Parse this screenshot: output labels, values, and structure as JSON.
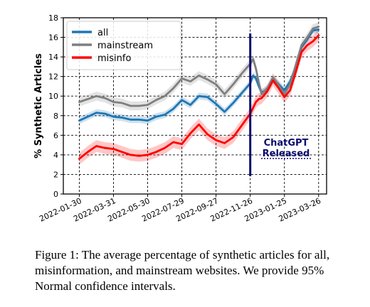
{
  "chart_data": {
    "type": "line",
    "ylabel": "% Synthetic Articles",
    "xlabel": "",
    "ylim": [
      0,
      18
    ],
    "yticks": [
      0,
      2,
      4,
      6,
      8,
      10,
      12,
      14,
      16,
      18
    ],
    "xlim": [
      "2022-01-02",
      "2023-04-09"
    ],
    "xticks": [
      "2022-01-30",
      "2022-03-31",
      "2022-05-30",
      "2022-07-29",
      "2022-09-27",
      "2022-11-26",
      "2023-01-25",
      "2023-03-26"
    ],
    "grid": true,
    "legend": {
      "location": "upper-left"
    },
    "colors": {
      "all": "#1f77b4",
      "mainstream": "#7f7f7f",
      "misinfo": "#ff0000",
      "annotation": "#0a0a6e"
    },
    "x": [
      "2022-01-30",
      "2022-02-14",
      "2022-03-01",
      "2022-03-16",
      "2022-03-31",
      "2022-04-15",
      "2022-04-30",
      "2022-05-15",
      "2022-05-30",
      "2022-06-14",
      "2022-06-29",
      "2022-07-14",
      "2022-07-29",
      "2022-08-13",
      "2022-08-28",
      "2022-09-12",
      "2022-09-27",
      "2022-10-12",
      "2022-10-27",
      "2022-11-11",
      "2022-11-26",
      "2022-12-01",
      "2022-12-06",
      "2022-12-11",
      "2022-12-16",
      "2022-12-26",
      "2023-01-05",
      "2023-01-15",
      "2023-01-25",
      "2023-02-04",
      "2023-02-14",
      "2023-02-24",
      "2023-03-06",
      "2023-03-16",
      "2023-03-26"
    ],
    "series": [
      {
        "name": "all",
        "values": [
          7.5,
          7.9,
          8.3,
          8.2,
          7.9,
          7.8,
          7.6,
          7.6,
          7.5,
          7.9,
          8.1,
          8.7,
          9.6,
          9.1,
          10.0,
          9.9,
          9.2,
          8.4,
          9.3,
          10.3,
          11.3,
          12.1,
          11.8,
          11.0,
          10.4,
          10.6,
          11.6,
          11.2,
          10.6,
          11.5,
          13.0,
          15.0,
          15.8,
          16.7,
          16.8
        ]
      },
      {
        "name": "mainstream",
        "values": [
          9.4,
          9.7,
          10.0,
          9.8,
          9.4,
          9.3,
          9.0,
          9.0,
          9.1,
          9.6,
          10.0,
          10.8,
          11.8,
          11.5,
          12.1,
          11.7,
          11.2,
          10.2,
          11.2,
          12.3,
          13.3,
          13.8,
          12.8,
          11.4,
          10.2,
          10.8,
          11.9,
          11.1,
          10.2,
          11.2,
          13.2,
          15.2,
          16.0,
          16.9,
          17.1
        ]
      },
      {
        "name": "misinfo",
        "values": [
          3.6,
          4.3,
          4.9,
          4.7,
          4.6,
          4.3,
          4.0,
          3.9,
          4.0,
          4.3,
          4.7,
          5.3,
          5.1,
          6.2,
          7.1,
          6.1,
          5.5,
          5.2,
          5.8,
          7.0,
          8.2,
          8.8,
          9.4,
          9.7,
          9.8,
          10.5,
          11.6,
          10.8,
          9.9,
          10.6,
          12.5,
          14.5,
          15.2,
          15.6,
          16.2
        ]
      }
    ],
    "annotations": [
      {
        "text": "ChatGPT\nReleased",
        "line1": "ChatGPT",
        "line2": "Released",
        "x": "2022-11-26"
      }
    ]
  },
  "caption": "Figure 1: The average percentage of synthetic articles for all, misinformation, and mainstream websites. We provide 95% Normal confidence intervals."
}
